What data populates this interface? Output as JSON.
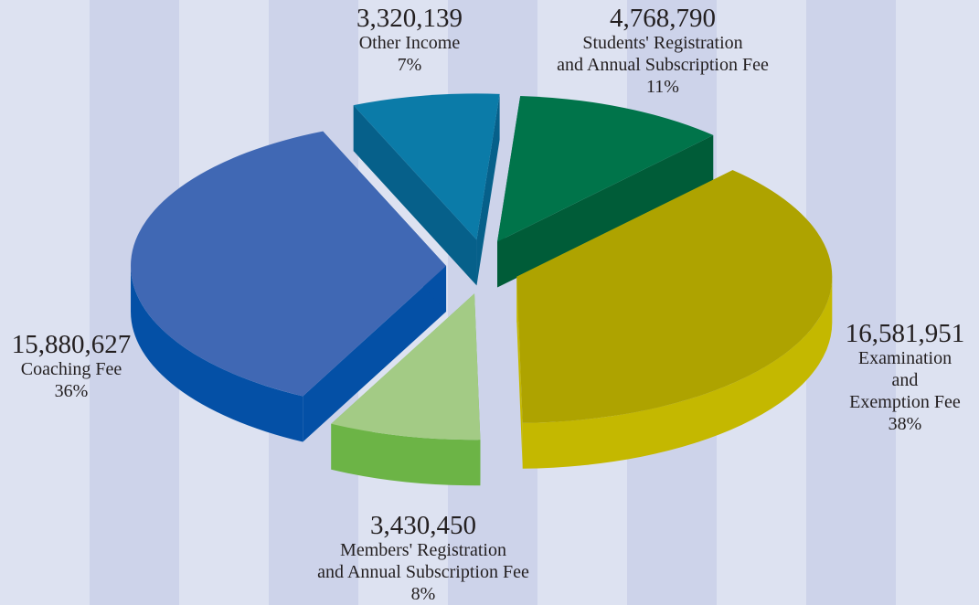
{
  "chart_data": {
    "type": "pie3d",
    "categories": [
      "Other Income",
      "Students' Registration\nand Annual Subscription Fee",
      "Examination and\nExemption Fee",
      "Members' Registration\nand Annual Subscription Fee",
      "Coaching Fee"
    ],
    "values": [
      3320139,
      4768790,
      16581951,
      3430450,
      15880627
    ],
    "value_labels": [
      "3,320,139",
      "4,768,790",
      "16,581,951",
      "3,430,450",
      "15,880,627"
    ],
    "percentages": [
      7,
      11,
      38,
      8,
      36
    ],
    "percentage_labels": [
      "7%",
      "11%",
      "38%",
      "8%",
      "36%"
    ],
    "colors": [
      "#0b7ba8",
      "#00744a",
      "#aea300",
      "#a3cb85",
      "#4068b4"
    ],
    "side_colors": [
      "#06608a",
      "#005c38",
      "#c4b800",
      "#6cb446",
      "#0450a6"
    ]
  }
}
